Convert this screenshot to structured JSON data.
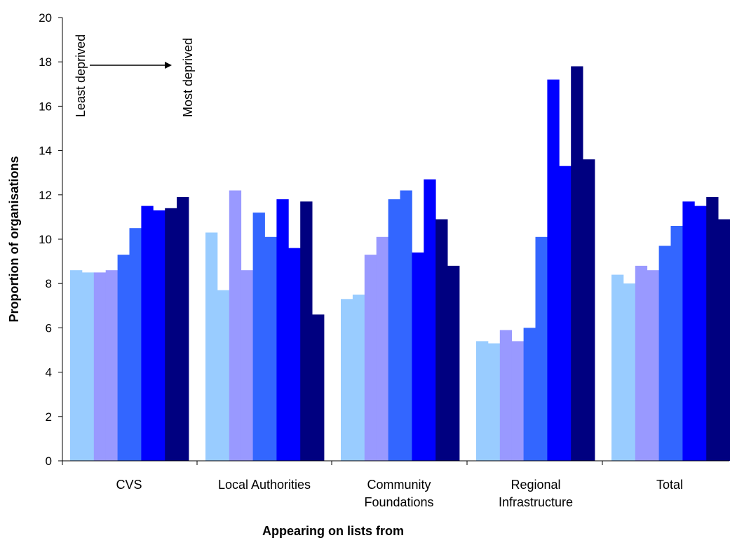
{
  "chart_data": {
    "type": "bar",
    "xlabel": "Appearing on lists from",
    "ylabel": "Proportion of organisations",
    "ylim": [
      0,
      20
    ],
    "yticks": [
      0,
      2,
      4,
      6,
      8,
      10,
      12,
      14,
      16,
      18,
      20
    ],
    "categories": [
      [
        "CVS"
      ],
      [
        "Local Authorities"
      ],
      [
        "Community",
        "Foundations"
      ],
      [
        "Regional",
        "Infrastructure"
      ],
      [
        "Total"
      ]
    ],
    "series": [
      {
        "color": "#99ccff",
        "values": [
          8.6,
          10.3,
          7.3,
          5.4,
          8.4
        ]
      },
      {
        "color": "#99ccff",
        "values": [
          8.5,
          7.7,
          7.5,
          5.3,
          8.0
        ]
      },
      {
        "color": "#9999ff",
        "values": [
          8.5,
          12.2,
          9.3,
          5.9,
          8.8
        ]
      },
      {
        "color": "#9999ff",
        "values": [
          8.6,
          8.6,
          10.1,
          5.4,
          8.6
        ]
      },
      {
        "color": "#3366ff",
        "values": [
          9.3,
          11.2,
          11.8,
          6.0,
          9.7
        ]
      },
      {
        "color": "#3366ff",
        "values": [
          10.5,
          10.1,
          12.2,
          10.1,
          10.6
        ]
      },
      {
        "color": "#0000ff",
        "values": [
          11.5,
          11.8,
          9.4,
          17.2,
          11.7
        ]
      },
      {
        "color": "#0000ff",
        "values": [
          11.3,
          9.6,
          12.7,
          13.3,
          11.5
        ]
      },
      {
        "color": "#000080",
        "values": [
          11.4,
          11.7,
          10.9,
          17.8,
          11.9
        ]
      },
      {
        "color": "#000080",
        "values": [
          11.9,
          6.6,
          8.8,
          13.6,
          10.9
        ]
      }
    ],
    "grid": false,
    "annotations": {
      "least": "Least deprived",
      "most": "Most deprived"
    }
  }
}
